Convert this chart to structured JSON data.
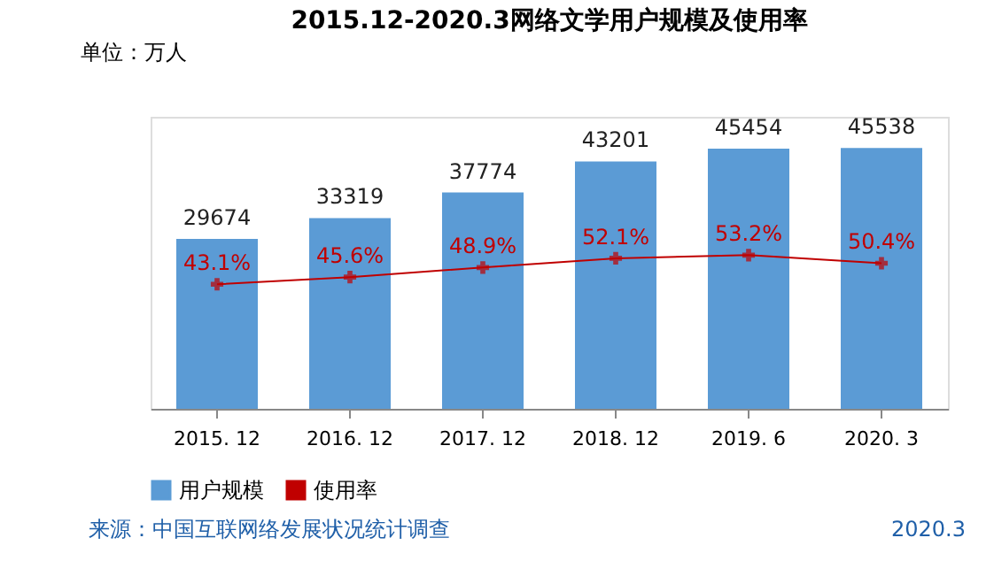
{
  "chart_data": {
    "type": "bar",
    "title": "2015.12-2020.3网络文学用户规模及使用率",
    "ylabel": "单位：万人",
    "categories": [
      "2015. 12",
      "2016. 12",
      "2017. 12",
      "2018. 12",
      "2019. 6",
      "2020. 3"
    ],
    "series": [
      {
        "name": "用户规模",
        "color": "#5b9bd5",
        "values": [
          29674,
          33319,
          37774,
          43201,
          45454,
          45538
        ]
      },
      {
        "name": "使用率",
        "type": "line",
        "axis": "y2",
        "color": "#c00000",
        "marker": "cross",
        "values": [
          43.1,
          45.6,
          48.9,
          52.1,
          53.2,
          50.4
        ],
        "value_labels": [
          "43.1%",
          "45.6%",
          "48.9%",
          "52.1%",
          "53.2%",
          "50.4%"
        ]
      }
    ],
    "data_labels": true,
    "grid": false,
    "legend": "bottom",
    "annotations": [
      "来源：中国互联网络发展状况统计调查",
      "2020.3"
    ]
  }
}
